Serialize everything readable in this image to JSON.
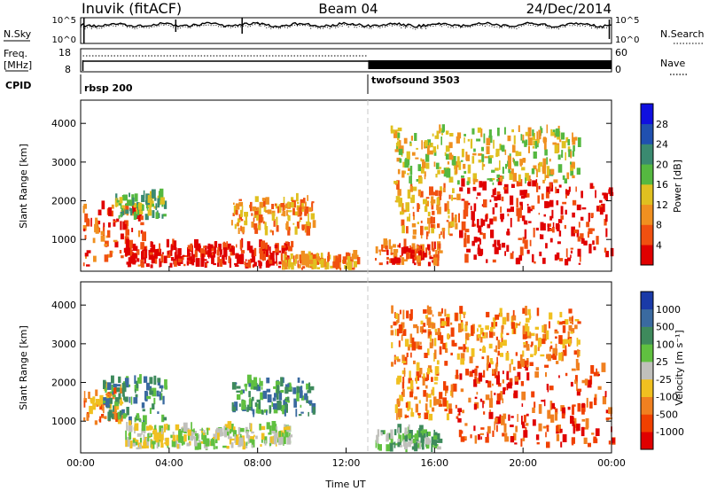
{
  "header": {
    "station": "Inuvik (fitACF)",
    "beam": "Beam 04",
    "date": "24/Dec/2014"
  },
  "top_panels": {
    "nsky_label": "N.Sky",
    "nsearch_label": "N.Search",
    "nsky_ticks": [
      "10^5",
      "10^0"
    ],
    "nsearch_ticks": [
      "10^5",
      "10^0"
    ],
    "freq_label": "Freq.",
    "freq_unit": "[MHz]",
    "freq_ticks": [
      "18",
      "8"
    ],
    "nave_label": "Nave",
    "nave_ticks": [
      "60",
      "0"
    ],
    "cpid_label": "CPID",
    "cpid_segments": [
      {
        "name": "rbsp 200",
        "start_hour": 0
      },
      {
        "name": "twofsound 3503",
        "start_hour": 13
      }
    ]
  },
  "chart_data": [
    {
      "type": "heatmap",
      "panel": "power",
      "ylabel": "Slant Range [km]",
      "ylim": [
        180,
        4600
      ],
      "yticks": [
        "1000",
        "2000",
        "3000",
        "4000"
      ],
      "xlabel": "",
      "colorbar_label": "Power [dB]",
      "colorbar_ticks": [
        "4",
        "8",
        "12",
        "16",
        "20",
        "24",
        "28"
      ],
      "colors": [
        "#1010e0",
        "#2050b0",
        "#3a8a70",
        "#55b840",
        "#e0c020",
        "#f09020",
        "#f05010",
        "#e00000"
      ],
      "regions": [
        {
          "t0": 0.1,
          "t1": 2.8,
          "r0": 300,
          "r1": 1800,
          "level": 6
        },
        {
          "t0": 1.5,
          "t1": 3.8,
          "r0": 1500,
          "r1": 2100,
          "level": 3
        },
        {
          "t0": 2.0,
          "t1": 9.5,
          "r0": 250,
          "r1": 800,
          "level": 7
        },
        {
          "t0": 6.8,
          "t1": 10.5,
          "r0": 1100,
          "r1": 2000,
          "level": 5
        },
        {
          "t0": 9.0,
          "t1": 12.5,
          "r0": 200,
          "r1": 500,
          "level": 5
        },
        {
          "t0": 13.3,
          "t1": 16.2,
          "r0": 300,
          "r1": 800,
          "level": 6
        },
        {
          "t0": 14.2,
          "t1": 17.0,
          "r0": 1000,
          "r1": 2300,
          "level": 5
        },
        {
          "t0": 17.0,
          "t1": 24.0,
          "r0": 300,
          "r1": 2400,
          "level": 7
        },
        {
          "t0": 14.0,
          "t1": 22.5,
          "r0": 2400,
          "r1": 3800,
          "level": 4
        }
      ]
    },
    {
      "type": "heatmap",
      "panel": "velocity",
      "ylabel": "Slant Range [km]",
      "ylim": [
        180,
        4600
      ],
      "yticks": [
        "1000",
        "2000",
        "3000",
        "4000"
      ],
      "xlabel": "Time UT",
      "xticks": [
        "00:00",
        "04:00",
        "08:00",
        "12:00",
        "16:00",
        "20:00",
        "00:00"
      ],
      "colorbar_label": "Velocity [m s⁻¹]",
      "colorbar_ticks": [
        "1000",
        "500",
        "100",
        "25",
        "-25",
        "-100",
        "-500",
        "-1000"
      ],
      "colors": [
        "#1a3aa8",
        "#3a6aa0",
        "#3e8a5c",
        "#60c040",
        "#c0c0bc",
        "#f0c020",
        "#f08020",
        "#f04000",
        "#e00000"
      ],
      "ground_scatter_color": "#c0c0bc",
      "regions": [
        {
          "t0": 0.1,
          "t1": 1.8,
          "r0": 900,
          "r1": 1800,
          "level": 6
        },
        {
          "t0": 1.0,
          "t1": 3.8,
          "r0": 900,
          "r1": 2000,
          "level": 2
        },
        {
          "t0": 2.0,
          "t1": 9.5,
          "r0": 250,
          "r1": 800,
          "level": 4
        },
        {
          "t0": 6.8,
          "t1": 10.5,
          "r0": 1100,
          "r1": 2000,
          "level": 2
        },
        {
          "t0": 13.3,
          "t1": 16.2,
          "r0": 200,
          "r1": 700,
          "level": 3
        },
        {
          "t0": 14.2,
          "t1": 17.0,
          "r0": 1000,
          "r1": 2300,
          "level": 6
        },
        {
          "t0": 17.0,
          "t1": 24.0,
          "r0": 300,
          "r1": 2400,
          "level": 7
        },
        {
          "t0": 14.0,
          "t1": 22.5,
          "r0": 2400,
          "r1": 3800,
          "level": 6
        }
      ]
    }
  ]
}
